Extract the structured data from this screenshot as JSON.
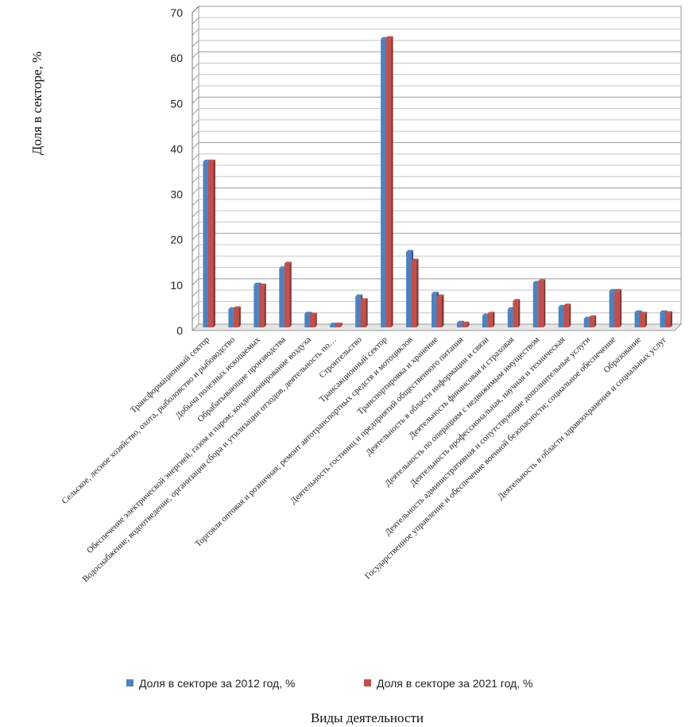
{
  "chart_data": {
    "type": "bar",
    "title": "",
    "xlabel": "Виды деятельности",
    "ylabel": "Доля в секторе, %",
    "ylim": [
      0,
      70
    ],
    "yticks": [
      0,
      10,
      20,
      30,
      40,
      50,
      60,
      70
    ],
    "grid": true,
    "legend_position": "bottom",
    "categories": [
      "Трансформационный сектор",
      "Сельское, лесное хозяйство, охота, рыболовство и рыбоводство",
      "Добыча полезных ископаемых",
      "Обрабатывающие производства",
      "Обеспечение электрической энергией, газом и паром; кондиционирование воздуха",
      "Водоснабжение; водоотведение, организация сбора и утилизации отходов, деятельность по…",
      "Строительство",
      "Трансакционный сектор",
      "Торговля оптовая и розничная; ремонт автотранспортных средств и мотоциклов",
      "Транспортировка и хранение",
      "Деятельность гостиниц и предприятий общественного питания",
      "Деятельность в области информации и связи",
      "Деятельность финансовая и страховая",
      "Деятельность по операциям с недвижимым имуществом",
      "Деятельность профессиональная, научная и техническая",
      "Деятельность административная и сопутствующие дополнительные услуги",
      "Государственное управление и обеспечение военной безопасности; социальное обеспечение",
      "Образование",
      "Деятельность в области здравоохранения и социальных услуг"
    ],
    "series": [
      {
        "name": "Доля в секторе за 2012 год, %",
        "color": "#4f81bd",
        "values": [
          36.5,
          4.0,
          9.4,
          13.0,
          3.0,
          0.6,
          6.8,
          63.5,
          16.6,
          7.4,
          1.0,
          2.6,
          4.0,
          9.8,
          4.5,
          1.9,
          8.0,
          3.3,
          3.3
        ]
      },
      {
        "name": "Доля в секторе за 2021 год, %",
        "color": "#c0504d",
        "values": [
          36.5,
          4.2,
          9.2,
          14.0,
          2.8,
          0.6,
          6.0,
          63.7,
          14.7,
          6.8,
          0.8,
          3.0,
          5.8,
          10.2,
          4.8,
          2.2,
          8.0,
          3.0,
          3.1
        ]
      }
    ]
  }
}
